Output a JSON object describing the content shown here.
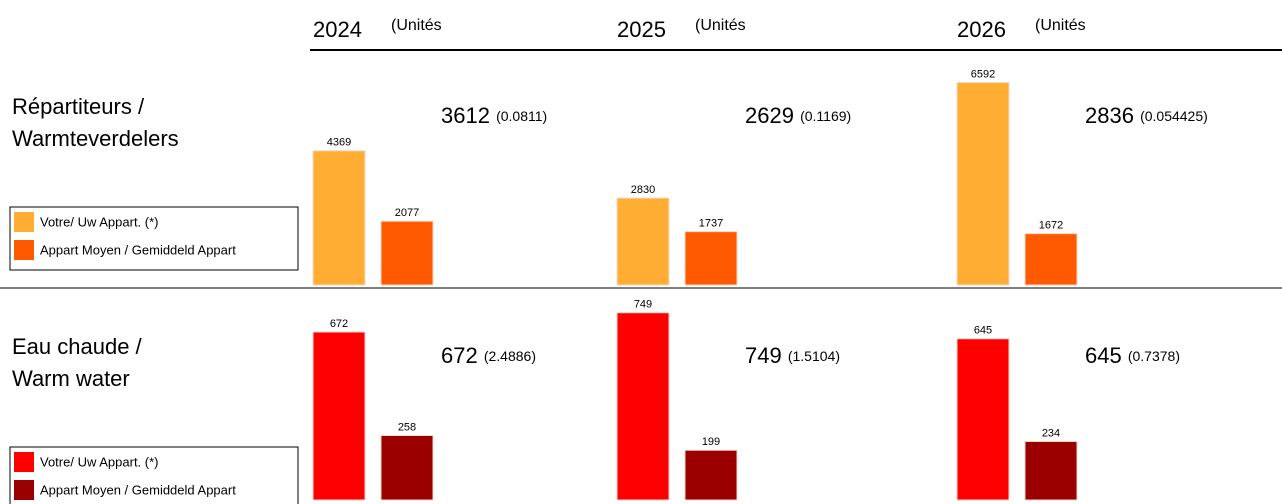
{
  "columns": [
    {
      "year": "2024",
      "unit": "(Unités"
    },
    {
      "year": "2025",
      "unit": "(Unités"
    },
    {
      "year": "2026",
      "unit": "(Unités"
    }
  ],
  "rows": [
    {
      "label_line1": "Répartiteurs  /",
      "label_line2": "Warmteverdelers",
      "legend": [
        {
          "name": "Votre/ Uw Appart. (*)",
          "color": "#ffad33"
        },
        {
          "name": "Appart Moyen / Gemiddeld Appart",
          "color": "#ff5a00"
        }
      ],
      "ylim": [
        0,
        7000
      ],
      "groups": [
        {
          "values": [
            4369,
            2077
          ],
          "total": 3612,
          "ratio": "(0.0811)"
        },
        {
          "values": [
            2830,
            1737
          ],
          "total": 2629,
          "ratio": "(0.1169)"
        },
        {
          "values": [
            6592,
            1672
          ],
          "total": 2836,
          "ratio": "(0.054425)"
        }
      ]
    },
    {
      "label_line1": "Eau chaude  /",
      "label_line2": "Warm water",
      "legend": [
        {
          "name": "Votre/ Uw Appart. (*)",
          "color": "#ff0000"
        },
        {
          "name": "Appart Moyen / Gemiddeld Appart",
          "color": "#9b0000"
        }
      ],
      "ylim": [
        0,
        800
      ],
      "groups": [
        {
          "values": [
            672,
            258
          ],
          "total": 672,
          "ratio": "(2.4886)"
        },
        {
          "values": [
            749,
            199
          ],
          "total": 749,
          "ratio": "(1.5104)"
        },
        {
          "values": [
            645,
            234
          ],
          "total": 645,
          "ratio": "(0.7378)"
        }
      ]
    }
  ]
}
